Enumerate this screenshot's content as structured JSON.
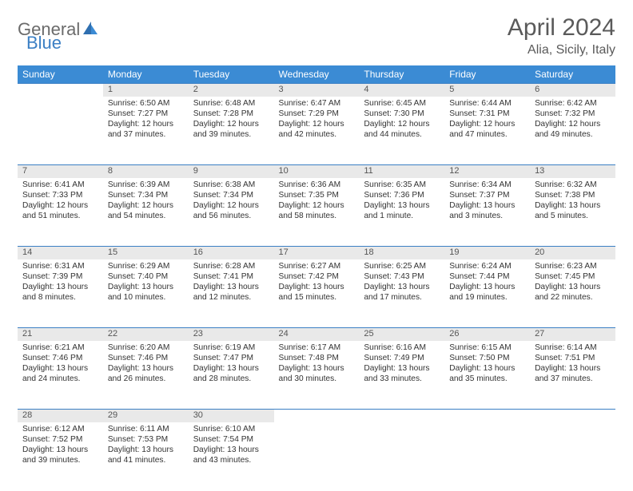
{
  "logo": {
    "text1": "General",
    "text2": "Blue"
  },
  "title": "April 2024",
  "subtitle": "Alia, Sicily, Italy",
  "colors": {
    "header_bg": "#3b8bd4",
    "header_text": "#ffffff",
    "daynum_bg": "#e9e9e9",
    "daynum_border": "#3b7fc4",
    "logo_gray": "#6b6b6b",
    "logo_blue": "#3b7fc4",
    "title_color": "#5a5a5a",
    "body_text": "#333333"
  },
  "weekdays": [
    "Sunday",
    "Monday",
    "Tuesday",
    "Wednesday",
    "Thursday",
    "Friday",
    "Saturday"
  ],
  "weeks": [
    [
      null,
      {
        "n": "1",
        "sr": "6:50 AM",
        "ss": "7:27 PM",
        "dl": "12 hours and 37 minutes."
      },
      {
        "n": "2",
        "sr": "6:48 AM",
        "ss": "7:28 PM",
        "dl": "12 hours and 39 minutes."
      },
      {
        "n": "3",
        "sr": "6:47 AM",
        "ss": "7:29 PM",
        "dl": "12 hours and 42 minutes."
      },
      {
        "n": "4",
        "sr": "6:45 AM",
        "ss": "7:30 PM",
        "dl": "12 hours and 44 minutes."
      },
      {
        "n": "5",
        "sr": "6:44 AM",
        "ss": "7:31 PM",
        "dl": "12 hours and 47 minutes."
      },
      {
        "n": "6",
        "sr": "6:42 AM",
        "ss": "7:32 PM",
        "dl": "12 hours and 49 minutes."
      }
    ],
    [
      {
        "n": "7",
        "sr": "6:41 AM",
        "ss": "7:33 PM",
        "dl": "12 hours and 51 minutes."
      },
      {
        "n": "8",
        "sr": "6:39 AM",
        "ss": "7:34 PM",
        "dl": "12 hours and 54 minutes."
      },
      {
        "n": "9",
        "sr": "6:38 AM",
        "ss": "7:34 PM",
        "dl": "12 hours and 56 minutes."
      },
      {
        "n": "10",
        "sr": "6:36 AM",
        "ss": "7:35 PM",
        "dl": "12 hours and 58 minutes."
      },
      {
        "n": "11",
        "sr": "6:35 AM",
        "ss": "7:36 PM",
        "dl": "13 hours and 1 minute."
      },
      {
        "n": "12",
        "sr": "6:34 AM",
        "ss": "7:37 PM",
        "dl": "13 hours and 3 minutes."
      },
      {
        "n": "13",
        "sr": "6:32 AM",
        "ss": "7:38 PM",
        "dl": "13 hours and 5 minutes."
      }
    ],
    [
      {
        "n": "14",
        "sr": "6:31 AM",
        "ss": "7:39 PM",
        "dl": "13 hours and 8 minutes."
      },
      {
        "n": "15",
        "sr": "6:29 AM",
        "ss": "7:40 PM",
        "dl": "13 hours and 10 minutes."
      },
      {
        "n": "16",
        "sr": "6:28 AM",
        "ss": "7:41 PM",
        "dl": "13 hours and 12 minutes."
      },
      {
        "n": "17",
        "sr": "6:27 AM",
        "ss": "7:42 PM",
        "dl": "13 hours and 15 minutes."
      },
      {
        "n": "18",
        "sr": "6:25 AM",
        "ss": "7:43 PM",
        "dl": "13 hours and 17 minutes."
      },
      {
        "n": "19",
        "sr": "6:24 AM",
        "ss": "7:44 PM",
        "dl": "13 hours and 19 minutes."
      },
      {
        "n": "20",
        "sr": "6:23 AM",
        "ss": "7:45 PM",
        "dl": "13 hours and 22 minutes."
      }
    ],
    [
      {
        "n": "21",
        "sr": "6:21 AM",
        "ss": "7:46 PM",
        "dl": "13 hours and 24 minutes."
      },
      {
        "n": "22",
        "sr": "6:20 AM",
        "ss": "7:46 PM",
        "dl": "13 hours and 26 minutes."
      },
      {
        "n": "23",
        "sr": "6:19 AM",
        "ss": "7:47 PM",
        "dl": "13 hours and 28 minutes."
      },
      {
        "n": "24",
        "sr": "6:17 AM",
        "ss": "7:48 PM",
        "dl": "13 hours and 30 minutes."
      },
      {
        "n": "25",
        "sr": "6:16 AM",
        "ss": "7:49 PM",
        "dl": "13 hours and 33 minutes."
      },
      {
        "n": "26",
        "sr": "6:15 AM",
        "ss": "7:50 PM",
        "dl": "13 hours and 35 minutes."
      },
      {
        "n": "27",
        "sr": "6:14 AM",
        "ss": "7:51 PM",
        "dl": "13 hours and 37 minutes."
      }
    ],
    [
      {
        "n": "28",
        "sr": "6:12 AM",
        "ss": "7:52 PM",
        "dl": "13 hours and 39 minutes."
      },
      {
        "n": "29",
        "sr": "6:11 AM",
        "ss": "7:53 PM",
        "dl": "13 hours and 41 minutes."
      },
      {
        "n": "30",
        "sr": "6:10 AM",
        "ss": "7:54 PM",
        "dl": "13 hours and 43 minutes."
      },
      null,
      null,
      null,
      null
    ]
  ],
  "labels": {
    "sunrise": "Sunrise: ",
    "sunset": "Sunset: ",
    "daylight": "Daylight: "
  }
}
